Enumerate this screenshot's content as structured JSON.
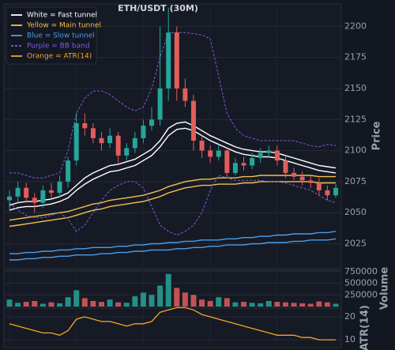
{
  "chart_data": {
    "type": "candlestick",
    "title": "ETH/USDT (30M)",
    "up_color": "#26a69a",
    "down_color": "#e35d5b",
    "grid": true,
    "open": [
      2060,
      2063,
      2070,
      2062,
      2058,
      2068,
      2066,
      2075,
      2092,
      2122,
      2118,
      2110,
      2106,
      2112,
      2096,
      2102,
      2110,
      2120,
      2125,
      2150,
      2195,
      2150,
      2140,
      2108,
      2100,
      2095,
      2100,
      2082,
      2090,
      2088,
      2094,
      2098,
      2100,
      2092,
      2082,
      2079,
      2076,
      2074,
      2068,
      2064
    ],
    "high": [
      2068,
      2075,
      2074,
      2066,
      2072,
      2074,
      2080,
      2095,
      2130,
      2130,
      2122,
      2115,
      2118,
      2115,
      2106,
      2115,
      2125,
      2135,
      2200,
      2215,
      2200,
      2158,
      2145,
      2112,
      2104,
      2105,
      2103,
      2094,
      2095,
      2098,
      2102,
      2104,
      2104,
      2096,
      2086,
      2083,
      2080,
      2078,
      2072,
      2073
    ],
    "low": [
      2052,
      2058,
      2058,
      2050,
      2054,
      2062,
      2062,
      2070,
      2088,
      2112,
      2106,
      2100,
      2102,
      2090,
      2092,
      2098,
      2106,
      2116,
      2120,
      2140,
      2140,
      2135,
      2100,
      2094,
      2090,
      2092,
      2078,
      2080,
      2084,
      2085,
      2090,
      2094,
      2088,
      2078,
      2076,
      2072,
      2070,
      2064,
      2060,
      2062
    ],
    "close": [
      2063,
      2070,
      2062,
      2058,
      2068,
      2066,
      2075,
      2092,
      2122,
      2118,
      2110,
      2106,
      2112,
      2096,
      2102,
      2110,
      2120,
      2125,
      2150,
      2195,
      2150,
      2140,
      2108,
      2100,
      2095,
      2100,
      2082,
      2090,
      2088,
      2094,
      2098,
      2100,
      2092,
      2082,
      2079,
      2076,
      2074,
      2068,
      2064,
      2070
    ],
    "ylim": [
      2005,
      2218
    ],
    "yticks": [
      2025,
      2050,
      2075,
      2100,
      2125,
      2150,
      2175,
      2200
    ],
    "ylabel": "Price",
    "overlays": [
      {
        "name": "White = Fast tunnel",
        "color": "#ffffff",
        "dash": false,
        "lines": [
          [
            2056,
            2058,
            2059,
            2059,
            2060,
            2061,
            2063,
            2066,
            2072,
            2078,
            2082,
            2085,
            2088,
            2089,
            2091,
            2093,
            2097,
            2101,
            2108,
            2118,
            2122,
            2123,
            2120,
            2116,
            2112,
            2109,
            2106,
            2103,
            2101,
            2100,
            2099,
            2099,
            2098,
            2096,
            2094,
            2092,
            2090,
            2088,
            2087,
            2086
          ],
          [
            2052,
            2054,
            2055,
            2055,
            2056,
            2057,
            2059,
            2062,
            2068,
            2073,
            2077,
            2080,
            2083,
            2084,
            2086,
            2088,
            2092,
            2096,
            2103,
            2112,
            2117,
            2118,
            2116,
            2112,
            2108,
            2105,
            2102,
            2099,
            2097,
            2096,
            2095,
            2095,
            2094,
            2092,
            2090,
            2088,
            2086,
            2084,
            2083,
            2082
          ]
        ]
      },
      {
        "name": "Yellow = Main tunnel",
        "color": "#f5c04a",
        "dash": false,
        "lines": [
          [
            2044,
            2045,
            2046,
            2047,
            2048,
            2049,
            2050,
            2051,
            2053,
            2055,
            2057,
            2058,
            2060,
            2061,
            2062,
            2063,
            2064,
            2066,
            2068,
            2071,
            2073,
            2075,
            2076,
            2077,
            2077,
            2078,
            2078,
            2078,
            2079,
            2079,
            2080,
            2080,
            2080,
            2080,
            2080,
            2080,
            2080,
            2079,
            2079,
            2079
          ],
          [
            2039,
            2040,
            2041,
            2042,
            2043,
            2044,
            2045,
            2046,
            2048,
            2050,
            2052,
            2053,
            2055,
            2056,
            2057,
            2058,
            2059,
            2061,
            2063,
            2066,
            2068,
            2070,
            2071,
            2072,
            2072,
            2073,
            2073,
            2073,
            2074,
            2074,
            2075,
            2075,
            2075,
            2075,
            2075,
            2075,
            2075,
            2074,
            2074,
            2074
          ]
        ]
      },
      {
        "name": "Blue = Slow tunnel",
        "color": "#4a9ee8",
        "dash": false,
        "lines": [
          [
            2017,
            2017,
            2018,
            2018,
            2019,
            2019,
            2020,
            2020,
            2021,
            2021,
            2022,
            2022,
            2022,
            2023,
            2023,
            2024,
            2024,
            2025,
            2025,
            2026,
            2026,
            2027,
            2027,
            2028,
            2028,
            2028,
            2029,
            2029,
            2030,
            2030,
            2031,
            2031,
            2032,
            2032,
            2033,
            2033,
            2033,
            2034,
            2034,
            2035
          ],
          [
            2012,
            2012,
            2013,
            2013,
            2014,
            2014,
            2015,
            2015,
            2016,
            2016,
            2016,
            2017,
            2017,
            2018,
            2018,
            2019,
            2019,
            2020,
            2020,
            2020,
            2021,
            2021,
            2022,
            2022,
            2023,
            2023,
            2024,
            2024,
            2024,
            2025,
            2025,
            2026,
            2026,
            2026,
            2027,
            2027,
            2028,
            2028,
            2028,
            2029
          ]
        ]
      },
      {
        "name": "Purple = BB band",
        "color": "#7b5ce0",
        "dash": true,
        "lines": [
          [
            2082,
            2082,
            2080,
            2078,
            2078,
            2080,
            2082,
            2100,
            2130,
            2142,
            2148,
            2148,
            2145,
            2140,
            2135,
            2132,
            2135,
            2150,
            2175,
            2195,
            2195,
            2195,
            2194,
            2193,
            2190,
            2160,
            2130,
            2118,
            2112,
            2110,
            2108,
            2108,
            2108,
            2108,
            2108,
            2106,
            2104,
            2103,
            2105,
            2104
          ],
          [
            2058,
            2052,
            2048,
            2046,
            2046,
            2048,
            2050,
            2045,
            2035,
            2040,
            2050,
            2060,
            2068,
            2072,
            2075,
            2075,
            2070,
            2055,
            2040,
            2035,
            2032,
            2035,
            2040,
            2050,
            2068,
            2080,
            2078,
            2076,
            2076,
            2076,
            2076,
            2075,
            2075,
            2074,
            2072,
            2070,
            2068,
            2064,
            2060,
            2058
          ]
        ]
      }
    ],
    "volume": {
      "values": [
        150000,
        80000,
        100000,
        120000,
        60000,
        90000,
        70000,
        200000,
        350000,
        180000,
        120000,
        100000,
        150000,
        90000,
        80000,
        220000,
        300000,
        250000,
        450000,
        700000,
        400000,
        300000,
        250000,
        150000,
        120000,
        200000,
        180000,
        90000,
        100000,
        80000,
        70000,
        120000,
        100000,
        90000,
        80000,
        70000,
        60000,
        110000,
        90000,
        60000
      ],
      "ylim": [
        0,
        780000
      ],
      "yticks": [
        250000,
        500000,
        750000
      ],
      "ylabel": "Volume"
    },
    "atr": {
      "name": "Orange = ATR(14)",
      "color": "#f5a623",
      "values": [
        17,
        16,
        15,
        14,
        13,
        13,
        12,
        14,
        19,
        20,
        19,
        18,
        18,
        17,
        16,
        17,
        17,
        18,
        22,
        23,
        24,
        24,
        23,
        21,
        20,
        19,
        18,
        17,
        16,
        15,
        14,
        13,
        12,
        12,
        12,
        11,
        11,
        10,
        10,
        10
      ],
      "ylim": [
        6.6,
        23.8
      ],
      "yticks": [
        10,
        20
      ],
      "ylabel": "ATR(14)"
    }
  }
}
